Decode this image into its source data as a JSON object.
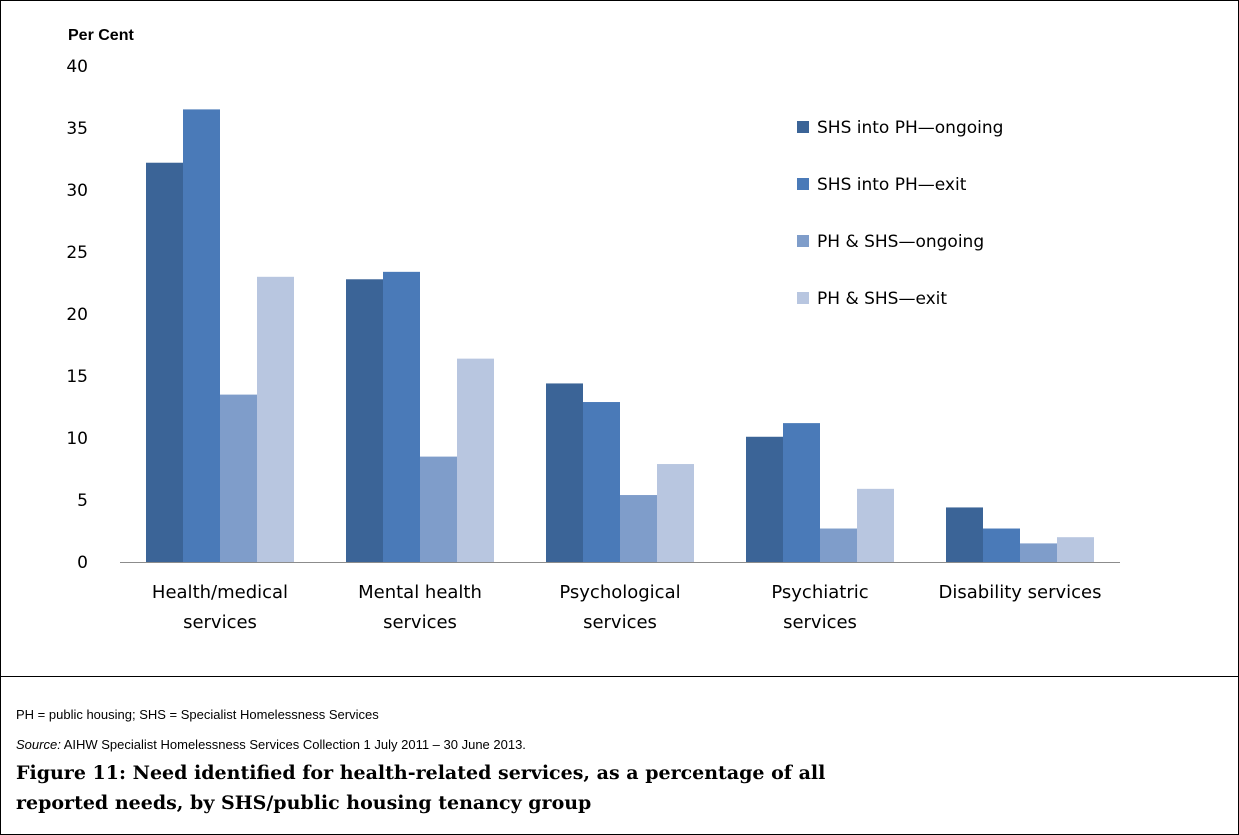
{
  "chart_data": {
    "type": "bar",
    "ylabel": "Per Cent",
    "ylim": [
      0,
      40
    ],
    "yticks": [
      0,
      5,
      10,
      15,
      20,
      25,
      30,
      35,
      40
    ],
    "grid": false,
    "legend_position": "top-right",
    "categories": [
      [
        "Health/medical",
        "services"
      ],
      [
        "Mental health",
        "services"
      ],
      [
        "Psychological",
        "services"
      ],
      [
        "Psychiatric",
        "services"
      ],
      [
        "Disability services"
      ]
    ],
    "series": [
      {
        "name": "SHS into PH—ongoing",
        "color": "#3B6497",
        "values": [
          32.2,
          22.8,
          14.4,
          10.1,
          4.4
        ]
      },
      {
        "name": "SHS into PH—exit",
        "color": "#4A7AB8",
        "values": [
          36.5,
          23.4,
          12.9,
          11.2,
          2.7
        ]
      },
      {
        "name": "PH & SHS—ongoing",
        "color": "#7F9DCA",
        "values": [
          13.5,
          8.5,
          5.4,
          2.7,
          1.5
        ]
      },
      {
        "name": "PH & SHS—exit",
        "color": "#B8C6E0",
        "values": [
          23.0,
          16.4,
          7.9,
          5.9,
          2.0
        ]
      }
    ]
  },
  "notes": {
    "abbrev": "PH = public housing; SHS = Specialist Homelessness Services",
    "source_label": "Source:",
    "source_text": " AIHW Specialist Homelessness Services Collection 1 July 2011 – 30 June 2013."
  },
  "caption": "Figure 11: Need identified for health-related services, as a percentage of all reported needs, by SHS/public housing tenancy group"
}
